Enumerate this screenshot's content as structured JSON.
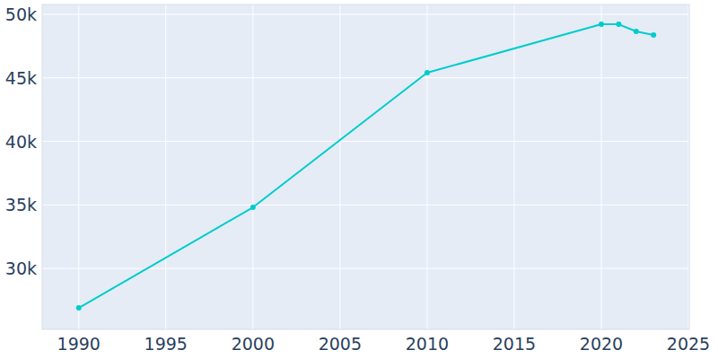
{
  "chart_data": {
    "type": "line",
    "x": [
      1990,
      2000,
      2010,
      2020,
      2021,
      2022,
      2023
    ],
    "values": [
      26890,
      34806,
      45406,
      49222,
      49222,
      48657,
      48375
    ],
    "color": "#00cccc",
    "marker": "circle",
    "xlim": [
      1987.9,
      2025.05
    ],
    "xticks": [
      1990,
      1995,
      2000,
      2005,
      2010,
      2015,
      2020,
      2025
    ],
    "ylim": [
      25200,
      50780
    ],
    "yticks": [
      {
        "value": 30000,
        "label": "30k"
      },
      {
        "value": 35000,
        "label": "35k"
      },
      {
        "value": 40000,
        "label": "40k"
      },
      {
        "value": 45000,
        "label": "45k"
      },
      {
        "value": 50000,
        "label": "50k"
      }
    ],
    "grid": true
  }
}
